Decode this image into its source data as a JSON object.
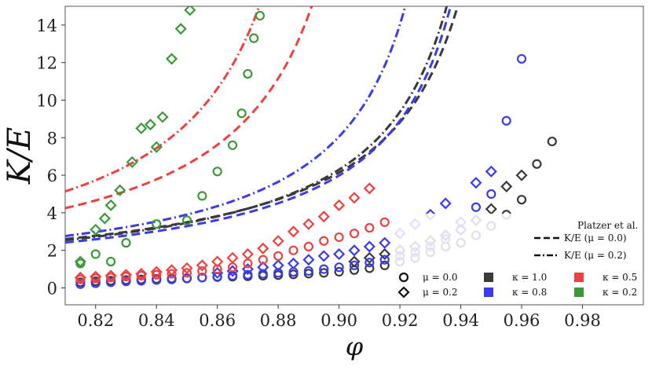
{
  "chart_data": {
    "type": "scatter",
    "xlabel": "φ",
    "ylabel": "K/E",
    "xlim": [
      0.81,
      1.0
    ],
    "ylim": [
      -0.9,
      15
    ],
    "xticks": [
      0.82,
      0.84,
      0.86,
      0.88,
      0.9,
      0.92,
      0.94,
      0.96,
      0.98
    ],
    "xtick_labels": [
      "0.82",
      "0.84",
      "0.86",
      "0.88",
      "0.90",
      "0.92",
      "0.94",
      "0.96",
      "0.98"
    ],
    "yticks": [
      0,
      2,
      4,
      6,
      8,
      10,
      12,
      14
    ],
    "ytick_labels": [
      "0",
      "2",
      "4",
      "6",
      "8",
      "10",
      "12",
      "14"
    ],
    "grid": false,
    "colors": {
      "k1.0": "#3a3a3a",
      "k0.8": "#3b3bf0",
      "k0.5": "#f04040",
      "k0.2": "#3a9a3a"
    },
    "series": [
      {
        "kappa": 1.0,
        "mu": 0.0,
        "marker": "circle",
        "color": "#3a3a3a",
        "x": [
          0.815,
          0.82,
          0.825,
          0.83,
          0.835,
          0.84,
          0.845,
          0.85,
          0.855,
          0.86,
          0.865,
          0.87,
          0.875,
          0.88,
          0.885,
          0.89,
          0.895,
          0.9,
          0.905,
          0.91,
          0.915,
          0.92,
          0.925,
          0.93,
          0.935,
          0.94,
          0.945,
          0.95,
          0.955,
          0.96,
          0.965,
          0.97
        ],
        "y": [
          0.3,
          0.35,
          0.38,
          0.42,
          0.45,
          0.48,
          0.5,
          0.52,
          0.55,
          0.58,
          0.6,
          0.62,
          0.65,
          0.68,
          0.72,
          0.76,
          0.8,
          0.86,
          0.95,
          1.05,
          1.2,
          1.4,
          1.6,
          1.9,
          2.2,
          2.4,
          2.8,
          3.3,
          3.9,
          4.7,
          6.6,
          7.8
        ]
      },
      {
        "kappa": 1.0,
        "mu": 0.2,
        "marker": "diamond",
        "color": "#3a3a3a",
        "x": [
          0.905,
          0.91,
          0.915,
          0.92,
          0.925,
          0.93,
          0.935,
          0.94,
          0.945,
          0.95,
          0.955,
          0.96
        ],
        "y": [
          1.4,
          1.6,
          1.8,
          2.0,
          2.2,
          2.5,
          2.8,
          3.1,
          3.6,
          4.2,
          5.4,
          6.0
        ]
      },
      {
        "kappa": 0.8,
        "mu": 0.0,
        "marker": "circle",
        "color": "#3b3bf0",
        "x": [
          0.815,
          0.82,
          0.825,
          0.83,
          0.835,
          0.84,
          0.845,
          0.85,
          0.855,
          0.86,
          0.865,
          0.87,
          0.875,
          0.88,
          0.885,
          0.89,
          0.895,
          0.9,
          0.905,
          0.91,
          0.915,
          0.92,
          0.925,
          0.93,
          0.935,
          0.94,
          0.945,
          0.95,
          0.955,
          0.96
        ],
        "y": [
          0.2,
          0.25,
          0.3,
          0.35,
          0.38,
          0.42,
          0.45,
          0.5,
          0.55,
          0.6,
          0.65,
          0.7,
          0.75,
          0.8,
          0.85,
          0.9,
          1.0,
          1.1,
          1.2,
          1.35,
          1.5,
          1.7,
          1.9,
          2.2,
          2.6,
          3.1,
          4.3,
          5.0,
          8.9,
          12.2
        ]
      },
      {
        "kappa": 0.8,
        "mu": 0.2,
        "marker": "diamond",
        "color": "#3b3bf0",
        "x": [
          0.86,
          0.865,
          0.87,
          0.875,
          0.88,
          0.885,
          0.89,
          0.895,
          0.9,
          0.905,
          0.91,
          0.915,
          0.92,
          0.925,
          0.93,
          0.935,
          0.94,
          0.945,
          0.95
        ],
        "y": [
          0.8,
          0.9,
          1.0,
          1.1,
          1.2,
          1.3,
          1.5,
          1.7,
          1.8,
          2.0,
          2.2,
          2.4,
          2.9,
          3.4,
          3.9,
          4.5,
          3.5,
          5.6,
          6.2
        ]
      },
      {
        "kappa": 0.5,
        "mu": 0.0,
        "marker": "circle",
        "color": "#f04040",
        "x": [
          0.815,
          0.82,
          0.825,
          0.83,
          0.835,
          0.84,
          0.845,
          0.85,
          0.855,
          0.86,
          0.865,
          0.87,
          0.875,
          0.88,
          0.885,
          0.89,
          0.895,
          0.9,
          0.905,
          0.91,
          0.915
        ],
        "y": [
          0.45,
          0.5,
          0.55,
          0.6,
          0.65,
          0.7,
          0.75,
          0.8,
          0.9,
          1.0,
          1.1,
          1.3,
          1.5,
          1.7,
          2.0,
          2.2,
          2.5,
          2.7,
          2.9,
          3.2,
          3.5
        ]
      },
      {
        "kappa": 0.5,
        "mu": 0.2,
        "marker": "diamond",
        "color": "#f04040",
        "x": [
          0.815,
          0.82,
          0.825,
          0.83,
          0.835,
          0.84,
          0.845,
          0.85,
          0.855,
          0.86,
          0.865,
          0.87,
          0.875,
          0.88,
          0.885,
          0.89,
          0.895,
          0.9,
          0.905,
          0.91
        ],
        "y": [
          0.55,
          0.6,
          0.65,
          0.7,
          0.75,
          0.85,
          0.95,
          1.05,
          1.2,
          1.4,
          1.6,
          1.8,
          2.1,
          2.5,
          3.0,
          3.4,
          3.8,
          4.4,
          4.8,
          5.3
        ]
      },
      {
        "kappa": 0.2,
        "mu": 0.0,
        "marker": "circle",
        "color": "#3a9a3a",
        "x": [
          0.815,
          0.82,
          0.825,
          0.83,
          0.84,
          0.85,
          0.855,
          0.86,
          0.865,
          0.868,
          0.87,
          0.872,
          0.874
        ],
        "y": [
          1.3,
          1.8,
          1.4,
          2.4,
          3.4,
          3.6,
          4.9,
          6.2,
          7.6,
          9.3,
          11.4,
          13.3,
          14.5
        ]
      },
      {
        "kappa": 0.2,
        "mu": 0.2,
        "marker": "diamond",
        "color": "#3a9a3a",
        "x": [
          0.815,
          0.82,
          0.823,
          0.825,
          0.828,
          0.832,
          0.835,
          0.838,
          0.84,
          0.842,
          0.845,
          0.848,
          0.851
        ],
        "y": [
          1.4,
          3.1,
          3.7,
          4.4,
          5.2,
          6.7,
          8.5,
          8.7,
          7.5,
          9.1,
          12.2,
          13.8,
          14.8
        ]
      }
    ],
    "fits": [
      {
        "label": "K/E (μ = 0.0)",
        "style": "dashed",
        "kappa": 1.0,
        "color": "#3a3a3a",
        "a": 0.42,
        "phi_c": 0.966
      },
      {
        "label": "K/E (μ = 0.2)",
        "style": "dashdot",
        "kappa": 1.0,
        "color": "#3a3a3a",
        "a": 0.4,
        "phi_c": 0.961
      },
      {
        "label": "K/E (μ = 0.0)",
        "style": "dashed",
        "kappa": 0.8,
        "color": "#3b3bf0",
        "a": 0.38,
        "phi_c": 0.961
      },
      {
        "label": "K/E (μ = 0.2)",
        "style": "dashdot",
        "kappa": 0.8,
        "color": "#3b3bf0",
        "a": 0.4,
        "phi_c": 0.947
      },
      {
        "label": "K/E (μ = 0.0)",
        "style": "dashed",
        "kappa": 0.5,
        "color": "#f04040",
        "a": 0.52,
        "phi_c": 0.923
      },
      {
        "label": "K/E (μ = 0.2)",
        "style": "dashdot",
        "kappa": 0.5,
        "color": "#f04040",
        "a": 0.55,
        "phi_c": 0.907
      },
      {
        "label": "K/E (μ = 0.0)",
        "style": "dashed",
        "kappa": 0.2,
        "color": "#3a9a3a",
        "a": 1.6,
        "phi_c": 0.878
      },
      {
        "label": "K/E (μ = 0.2)",
        "style": "dashdot",
        "kappa": 0.2,
        "color": "#3a9a3a",
        "a": 2.15,
        "phi_c": 0.857
      }
    ],
    "legend": {
      "placement": "bottom-right",
      "title": "Platzer et al.",
      "line_entries": [
        {
          "label": "K/E (μ = 0.0)",
          "style": "dashed"
        },
        {
          "label": "K/E (μ = 0.2)",
          "style": "dashdot"
        }
      ],
      "marker_entries": [
        {
          "label": "μ = 0.0",
          "marker": "circle"
        },
        {
          "label": "μ = 0.2",
          "marker": "diamond"
        }
      ],
      "color_entries": [
        {
          "label": "κ = 1.0",
          "color": "#3a3a3a"
        },
        {
          "label": "κ = 0.8",
          "color": "#3b3bf0"
        },
        {
          "label": "κ = 0.5",
          "color": "#f04040"
        },
        {
          "label": "κ = 0.2",
          "color": "#3a9a3a"
        }
      ]
    }
  }
}
